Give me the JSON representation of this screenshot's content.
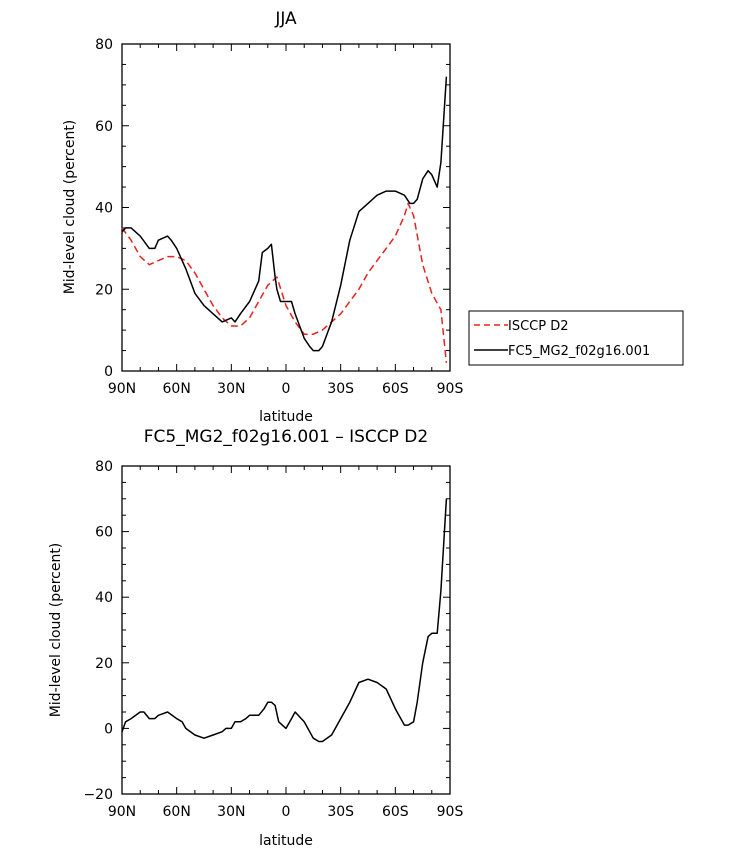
{
  "chart_data": [
    {
      "type": "line",
      "title": "JJA",
      "xlabel": "latitude",
      "ylabel": "Mid-level cloud (percent)",
      "xlim": [
        90,
        -90
      ],
      "ylim": [
        0,
        80
      ],
      "xticks": [
        90,
        60,
        30,
        0,
        -30,
        -60,
        -90
      ],
      "xtick_labels": [
        "90N",
        "60N",
        "30N",
        "0",
        "30S",
        "60S",
        "90S"
      ],
      "yticks": [
        0,
        20,
        40,
        60,
        80
      ],
      "ytick_labels": [
        "0",
        "20",
        "40",
        "60",
        "80"
      ],
      "grid": false,
      "legend": "right",
      "series": [
        {
          "name": "ISCCP D2",
          "color": "#e8221f",
          "dash": "dashed",
          "x": [
            90,
            85,
            80,
            75,
            70,
            65,
            60,
            55,
            50,
            45,
            40,
            35,
            30,
            25,
            20,
            15,
            10,
            5,
            0,
            -5,
            -10,
            -15,
            -20,
            -25,
            -30,
            -35,
            -40,
            -45,
            -50,
            -55,
            -60,
            -65,
            -67,
            -70,
            -75,
            -80,
            -85,
            -88
          ],
          "y": [
            35,
            32,
            28,
            26,
            27,
            28,
            28,
            27,
            24,
            20,
            16,
            13,
            11,
            11,
            13,
            17,
            21,
            23,
            16,
            12,
            9,
            9,
            10,
            12,
            14,
            17,
            20,
            24,
            27,
            30,
            33,
            38,
            41,
            38,
            26,
            19,
            15,
            2
          ]
        },
        {
          "name": "FC5_MG2_f02g16.001",
          "color": "#000000",
          "dash": "solid",
          "x": [
            90,
            88,
            85,
            80,
            75,
            72,
            70,
            65,
            63,
            60,
            55,
            50,
            45,
            40,
            35,
            30,
            28,
            25,
            20,
            15,
            13,
            10,
            8,
            6,
            5,
            3,
            0,
            -3,
            -5,
            -10,
            -13,
            -15,
            -18,
            -20,
            -25,
            -30,
            -35,
            -40,
            -45,
            -50,
            -55,
            -60,
            -65,
            -68,
            -70,
            -72,
            -75,
            -78,
            -80,
            -83,
            -85,
            -88
          ],
          "y": [
            34,
            35,
            35,
            33,
            30,
            30,
            32,
            33,
            32,
            30,
            25,
            19,
            16,
            14,
            12,
            13,
            12,
            14,
            17,
            22,
            29,
            30,
            31,
            23,
            20,
            17,
            17,
            17,
            14,
            8,
            6,
            5,
            5,
            6,
            12,
            21,
            32,
            39,
            41,
            43,
            44,
            44,
            43,
            41,
            41,
            42,
            47,
            49,
            48,
            45,
            51,
            72
          ]
        }
      ]
    },
    {
      "type": "line",
      "title": "FC5_MG2_f02g16.001 – ISCCP D2",
      "xlabel": "latitude",
      "ylabel": "Mid-level cloud (percent)",
      "xlim": [
        90,
        -90
      ],
      "ylim": [
        -20,
        80
      ],
      "xticks": [
        90,
        60,
        30,
        0,
        -30,
        -60,
        -90
      ],
      "xtick_labels": [
        "90N",
        "60N",
        "30N",
        "0",
        "30S",
        "60S",
        "90S"
      ],
      "yticks": [
        -20,
        0,
        20,
        40,
        60,
        80
      ],
      "ytick_labels": [
        "−20",
        "0",
        "20",
        "40",
        "60",
        "80"
      ],
      "grid": false,
      "series": [
        {
          "name": "",
          "color": "#000000",
          "dash": "solid",
          "x": [
            90,
            88,
            85,
            80,
            78,
            75,
            72,
            70,
            65,
            60,
            57,
            55,
            50,
            45,
            40,
            35,
            33,
            30,
            28,
            25,
            22,
            20,
            15,
            12,
            10,
            8,
            6,
            4,
            0,
            -3,
            -5,
            -10,
            -15,
            -18,
            -20,
            -25,
            -30,
            -35,
            -40,
            -45,
            -50,
            -55,
            -60,
            -65,
            -67,
            -70,
            -72,
            -75,
            -78,
            -80,
            -83,
            -85,
            -88
          ],
          "y": [
            -1,
            2,
            3,
            5,
            5,
            3,
            3,
            4,
            5,
            3,
            2,
            0,
            -2,
            -3,
            -2,
            -1,
            0,
            0,
            2,
            2,
            3,
            4,
            4,
            6,
            8,
            8,
            7,
            2,
            0,
            3,
            5,
            2,
            -3,
            -4,
            -4,
            -2,
            3,
            8,
            14,
            15,
            14,
            12,
            6,
            1,
            1,
            2,
            8,
            20,
            28,
            29,
            29,
            42,
            70
          ]
        }
      ]
    }
  ]
}
